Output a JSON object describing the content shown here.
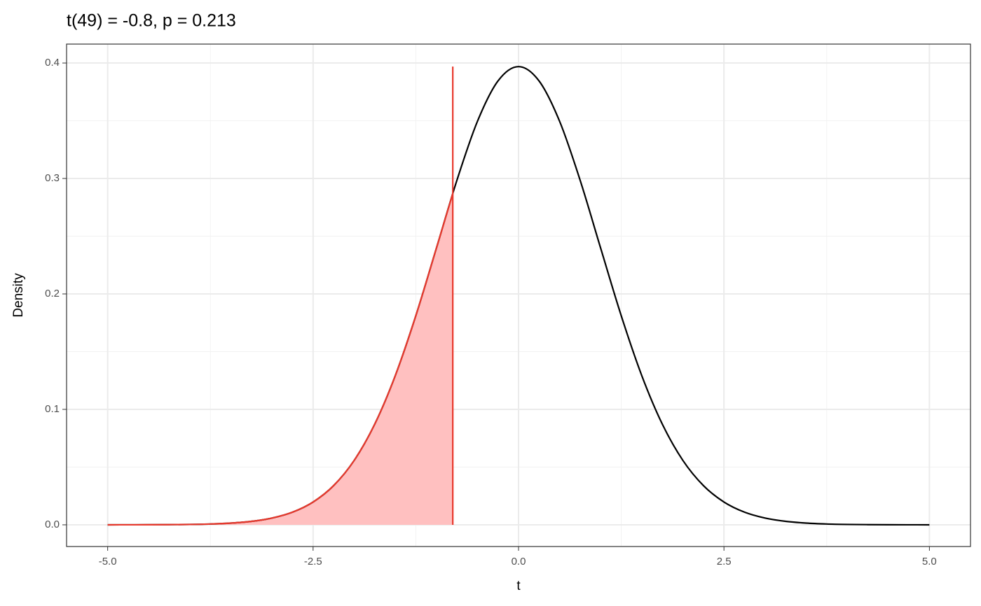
{
  "chart_data": {
    "type": "density",
    "title": "t(49) = -0.8, p = 0.213",
    "x_label": "t",
    "y_label": "Density",
    "xlim": [
      -5.5,
      5.5
    ],
    "ylim": [
      -0.0188,
      0.4164
    ],
    "xticks": [
      {
        "value": -5,
        "label": "-5.0"
      },
      -2.5,
      {
        "value": 0,
        "label": "0.0"
      },
      2.5,
      {
        "value": 5,
        "label": "5.0"
      }
    ],
    "yticks": [
      {
        "value": 0,
        "label": "0.0"
      },
      0.1,
      0.2,
      0.3,
      0.4
    ],
    "xminor_ticks": [
      -3.75,
      -1.25,
      1.25,
      3.75
    ],
    "yminor_ticks": [
      0.05,
      0.15,
      0.25,
      0.35
    ],
    "grid": true,
    "series": [
      {
        "color": "#000000",
        "x": [
          -5,
          -4.75,
          -4.5,
          -4.25,
          -4,
          -3.75,
          -3.5,
          -3.25,
          -3,
          -2.75,
          -2.5,
          -2.25,
          -2,
          -1.75,
          -1.5,
          -1.25,
          -1,
          -0.75,
          -0.5,
          -0.25,
          0,
          0.25,
          0.5,
          0.75,
          1,
          1.25,
          1.5,
          1.75,
          2,
          2.25,
          2.5,
          2.75,
          3,
          3.25,
          3.5,
          3.75,
          4,
          4.25,
          4.5,
          4.75,
          5
        ],
        "values": [
          1e-05,
          3e-05,
          7e-05,
          0.00016,
          0.00034,
          0.00072,
          0.0015,
          0.00302,
          0.00586,
          0.01097,
          0.01975,
          0.03398,
          0.0558,
          0.08719,
          0.1292,
          0.18108,
          0.23951,
          0.29838,
          0.34949,
          0.38445,
          0.3969,
          0.38445,
          0.34949,
          0.29838,
          0.23951,
          0.18108,
          0.1292,
          0.08719,
          0.0558,
          0.03398,
          0.01975,
          0.01097,
          0.00586,
          0.00302,
          0.0015,
          0.00072,
          0.00034,
          0.00016,
          7e-05,
          3e-05,
          1e-05
        ]
      }
    ],
    "shaded": {
      "fill": "#ffc0c0",
      "color": "#e8382c",
      "x": [
        -5,
        -4.75,
        -4.5,
        -4.25,
        -4,
        -3.75,
        -3.5,
        -3.25,
        -3,
        -2.75,
        -2.5,
        -2.25,
        -2,
        -1.75,
        -1.5,
        -1.25,
        -1,
        -0.8
      ],
      "values": [
        1e-05,
        3e-05,
        7e-05,
        0.00016,
        0.00034,
        0.00072,
        0.0015,
        0.00302,
        0.00586,
        0.01097,
        0.01975,
        0.03398,
        0.0558,
        0.08719,
        0.1292,
        0.18108,
        0.23951,
        0.28694
      ]
    },
    "vline": {
      "x": -0.8,
      "y": [
        0,
        0.3969
      ],
      "color": "#e8382c"
    }
  }
}
